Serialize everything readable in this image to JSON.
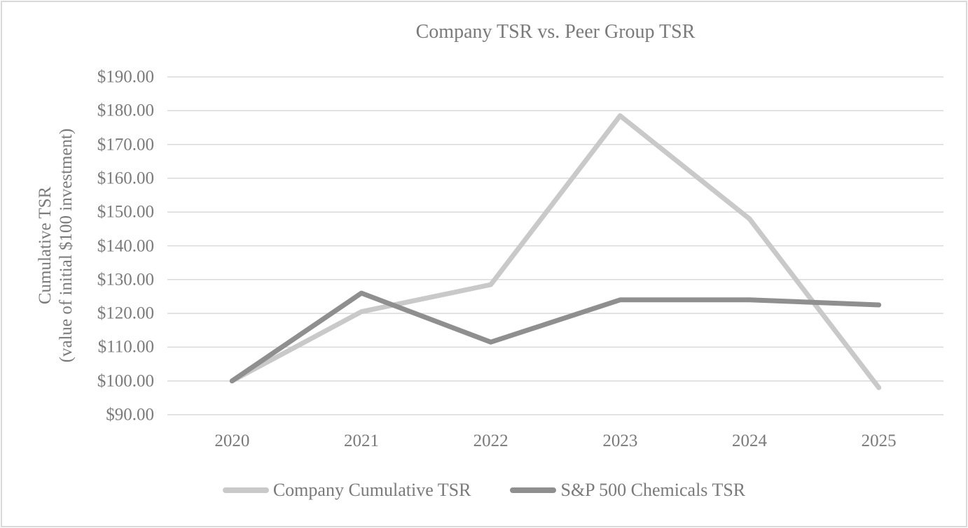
{
  "chart": {
    "title": "Company TSR vs. Peer Group TSR"
  },
  "chart_data": {
    "type": "line",
    "title": "Company TSR vs. Peer Group TSR",
    "categories": [
      "2020",
      "2021",
      "2022",
      "2023",
      "2024",
      "2025"
    ],
    "series": [
      {
        "name": "Company Cumulative TSR",
        "color": "#c9c9c9",
        "values": [
          100,
          120.5,
          128.5,
          178.5,
          148,
          98
        ]
      },
      {
        "name": "S&P 500 Chemicals TSR",
        "color": "#8f8f8f",
        "values": [
          100,
          126,
          111.5,
          124,
          124,
          122.5
        ]
      }
    ],
    "xlabel": "",
    "ylabel": "Cumulative TSR (value of initial $100 investment)",
    "ylabel_lines": [
      "Cumulative TSR",
      "(value of initial $100 investment)"
    ],
    "ylim": [
      90,
      190
    ],
    "ytick_step": 10,
    "ytick_labels": [
      "$190.00",
      "$180.00",
      "$170.00",
      "$160.00",
      "$150.00",
      "$140.00",
      "$130.00",
      "$120.00",
      "$110.00",
      "$100.00",
      "$90.00"
    ],
    "grid": "horizontal-only",
    "legend_position": "bottom",
    "line_width": 7,
    "colors": {
      "text": "#7a7a7a",
      "gridline": "#d9d9d9",
      "frame_border": "#d9d9d9",
      "company_line": "#c9c9c9",
      "sp500_chemicals_line": "#8f8f8f"
    }
  }
}
